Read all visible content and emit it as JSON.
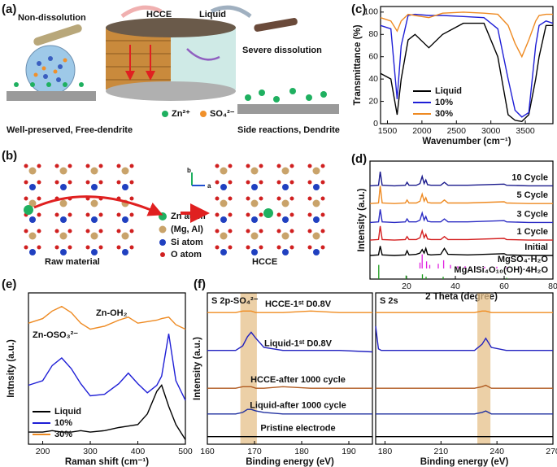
{
  "panel_a": {
    "label": "(a)",
    "non_dissolution": "Non-dissolution",
    "hcce": "HCCE",
    "liquid": "Liquid",
    "severe": "Severe dissolution",
    "zn": "Zn²⁺",
    "so4": "SO₄²⁻",
    "left_caption": "Well-preserved, Free-dendrite",
    "right_caption": "Side reactions, Dendrite"
  },
  "panel_b": {
    "label": "(b)",
    "raw": "Raw material",
    "hcce": "HCCE",
    "legend": [
      "Zn atom",
      "(Mg, Al)",
      "Si atom",
      "O atom"
    ],
    "axis_a": "a",
    "axis_b": "b"
  },
  "chart_data": [
    {
      "type": "line",
      "panel": "(c)",
      "xlabel": "Wavenumber (cm⁻¹)",
      "ylabel": "Transmittance (%)",
      "xlim": [
        1400,
        3900
      ],
      "ylim": [
        0,
        105
      ],
      "xticks": [
        1500,
        2000,
        2500,
        3000,
        3500
      ],
      "yticks": [
        0,
        20,
        40,
        60,
        80,
        100
      ],
      "legend": "lower left",
      "x": [
        1400,
        1550,
        1640,
        1700,
        1800,
        1900,
        2100,
        2300,
        2600,
        2900,
        3100,
        3250,
        3350,
        3450,
        3550,
        3650,
        3700,
        3800,
        3900
      ],
      "series": [
        {
          "name": "Liquid",
          "color": "#000000",
          "values": [
            45,
            40,
            8,
            40,
            75,
            80,
            68,
            80,
            90,
            90,
            60,
            8,
            3,
            2,
            8,
            40,
            60,
            88,
            88
          ]
        },
        {
          "name": "10%",
          "color": "#1f1fd6",
          "values": [
            88,
            85,
            22,
            70,
            97,
            98,
            97,
            97,
            96,
            95,
            85,
            40,
            12,
            6,
            10,
            70,
            88,
            92,
            90
          ]
        },
        {
          "name": "30%",
          "color": "#ee8a22",
          "values": [
            95,
            92,
            83,
            92,
            98,
            97,
            95,
            99,
            100,
            99,
            98,
            88,
            72,
            60,
            75,
            92,
            97,
            98,
            98
          ]
        }
      ]
    },
    {
      "type": "line",
      "panel": "(d)",
      "xlabel": "2 Theta (degree)",
      "ylabel": "Intensity (a.u.)",
      "xlim": [
        5,
        80
      ],
      "ylim": [
        0,
        100
      ],
      "xticks": [
        20,
        40,
        60,
        80
      ],
      "x": [
        5,
        8.5,
        9.2,
        10,
        15,
        19.5,
        20.2,
        21,
        24,
        25.5,
        26.4,
        27.2,
        27.9,
        28.6,
        30,
        34,
        35.5,
        37,
        45,
        60,
        61,
        70,
        80
      ],
      "series": [
        {
          "name": "10 Cycle",
          "color": "#1a1a8c",
          "values": [
            79,
            79.5,
            91,
            79.5,
            79,
            79.5,
            82,
            79.5,
            79.5,
            81,
            87,
            81,
            84,
            80,
            79.5,
            79.5,
            82,
            79.5,
            79.5,
            80.5,
            79.5,
            79,
            79
          ]
        },
        {
          "name": "5 Cycle",
          "color": "#ee8a22",
          "values": [
            64,
            64.5,
            79,
            64.5,
            64,
            64.5,
            67,
            64.5,
            64.5,
            66,
            72,
            66,
            69,
            65,
            64.5,
            64.5,
            67,
            64.5,
            64.5,
            65.5,
            64.5,
            64,
            64
          ]
        },
        {
          "name": "3 Cycle",
          "color": "#2c2cc4",
          "values": [
            48,
            48.5,
            59,
            48.5,
            48,
            48.5,
            51,
            48.5,
            48.5,
            50,
            56,
            50,
            53,
            49,
            48.5,
            48.5,
            51,
            48.5,
            48.5,
            49.5,
            48.5,
            48,
            48
          ]
        },
        {
          "name": "1 Cycle",
          "color": "#d42020",
          "values": [
            33,
            33.5,
            45,
            33.5,
            33,
            33.5,
            36,
            33.5,
            33.5,
            35,
            41,
            35,
            38,
            34,
            33.5,
            33.5,
            36,
            33.5,
            33.5,
            34.5,
            33.5,
            33,
            33
          ]
        },
        {
          "name": "Initial",
          "color": "#000000",
          "values": [
            20,
            20.5,
            28,
            20.5,
            20,
            20.5,
            24,
            20.5,
            21,
            22,
            25,
            22,
            26,
            21,
            20.5,
            21,
            26,
            21,
            20.5,
            21.5,
            20.5,
            20,
            20
          ]
        },
        {
          "name": "MgSO₄·H₂O",
          "color": "#e020e0",
          "marker": "stick",
          "x": [
            25.5,
            26.4,
            28.2,
            29.5,
            33,
            35.2,
            38,
            41,
            44,
            48,
            52,
            57,
            61,
            66
          ],
          "values": [
            5,
            12,
            6,
            3,
            4,
            7,
            3,
            2,
            2,
            1.5,
            1.5,
            1.5,
            1,
            1
          ]
        },
        {
          "name": "MgAlSi₄O₁₀(OH)·4H₂O",
          "color": "#1a9a1a",
          "marker": "stick",
          "x": [
            8.6,
            19.8,
            26.5,
            28,
            35,
            61
          ],
          "values": [
            12,
            3,
            4,
            2,
            2,
            1
          ]
        }
      ]
    },
    {
      "type": "line",
      "panel": "(e)",
      "xlabel": "Raman shift (cm⁻¹)",
      "ylabel": "Intnsity (a.u.)",
      "xlim": [
        170,
        500
      ],
      "ylim": [
        0,
        100
      ],
      "xticks": [
        200,
        300,
        400,
        500
      ],
      "legend": "lower left",
      "annotations": [
        "Zn-OH₂",
        "Zn-OSO₃²⁻"
      ],
      "x": [
        170,
        200,
        220,
        240,
        260,
        280,
        300,
        330,
        360,
        380,
        400,
        420,
        440,
        450,
        465,
        480,
        500
      ],
      "series": [
        {
          "name": "Liquid",
          "color": "#000000",
          "values": [
            8,
            8,
            9,
            8,
            8,
            9,
            8,
            9,
            11,
            12,
            13,
            20,
            35,
            39,
            25,
            13,
            3
          ]
        },
        {
          "name": "10%",
          "color": "#1f1fd6",
          "values": [
            39,
            42,
            52,
            57,
            50,
            40,
            32,
            33,
            40,
            47,
            40,
            34,
            39,
            45,
            73,
            42,
            29
          ]
        },
        {
          "name": "30%",
          "color": "#ee8a22",
          "values": [
            80,
            83,
            88,
            91,
            87,
            80,
            76,
            78,
            82,
            84,
            80,
            81,
            82,
            83,
            84,
            79,
            76
          ]
        }
      ]
    },
    {
      "type": "line",
      "panel": "(f)",
      "subtitle": "S 2p-SO₄²⁻",
      "xlabel": "Binding energy (eV)",
      "ylabel": "Intensity (a.u.)",
      "xlim": [
        160,
        195
      ],
      "ylim": [
        0,
        100
      ],
      "xticks": [
        160,
        170,
        180,
        190
      ],
      "span": [
        167,
        170.5
      ],
      "x": [
        160,
        163,
        166,
        167.5,
        168.5,
        169.3,
        170.3,
        172,
        176,
        182,
        188,
        195
      ],
      "series": [
        {
          "name": "HCCE-1ˢᵗ D0.8V",
          "color": "#f08c20",
          "values": [
            87,
            87,
            87,
            88,
            88,
            88,
            87,
            87,
            87,
            88,
            87,
            87
          ]
        },
        {
          "name": "Liquid-1ˢᵗ D0.8V",
          "color": "#2020c0",
          "values": [
            62,
            62,
            62,
            65,
            71,
            74,
            70,
            64,
            62,
            62,
            62,
            61
          ]
        },
        {
          "name": "HCCE-after 1000 cycle",
          "color": "#b05a20",
          "values": [
            37,
            37,
            37,
            38,
            38,
            38,
            37,
            37,
            38,
            37,
            37,
            37
          ]
        },
        {
          "name": "Liquid-after 1000 cycle",
          "color": "#2030a0",
          "values": [
            20,
            20,
            20,
            21,
            23,
            23,
            22,
            21,
            20,
            20,
            20,
            20
          ]
        },
        {
          "name": "Pristine electrode",
          "color": "#000000",
          "values": [
            5,
            5,
            5,
            5,
            5,
            5,
            5,
            5,
            5,
            5,
            5,
            5
          ]
        }
      ]
    },
    {
      "type": "line",
      "subtitle": "S 2s",
      "xlabel": "Binding energy (eV)",
      "xlim": [
        175,
        270
      ],
      "ylim": [
        0,
        100
      ],
      "xticks": [
        180,
        210,
        240,
        270
      ],
      "span": [
        229.5,
        236.5
      ],
      "x": [
        175,
        176.5,
        178,
        190,
        205,
        220,
        228,
        232,
        234,
        237,
        245,
        258,
        270
      ],
      "series": [
        {
          "color": "#f08c20",
          "values": [
            87,
            87,
            87,
            87,
            87,
            87,
            87,
            88,
            88,
            87,
            87,
            87,
            87
          ]
        },
        {
          "color": "#2020c0",
          "values": [
            78,
            63,
            62,
            62,
            62,
            62,
            62,
            66,
            70,
            64,
            62,
            62,
            62
          ]
        },
        {
          "color": "#b05a20",
          "values": [
            37,
            37,
            37,
            37,
            37,
            37,
            37,
            38,
            39,
            37,
            37,
            37,
            37
          ]
        },
        {
          "color": "#2030a0",
          "values": [
            20,
            20,
            20,
            20,
            20,
            20,
            20,
            21,
            22,
            20,
            20,
            20,
            20
          ]
        },
        {
          "color": "#000000",
          "values": [
            5,
            5,
            5,
            5,
            5,
            5,
            5,
            5,
            5,
            5,
            5,
            5,
            5
          ]
        }
      ]
    }
  ]
}
